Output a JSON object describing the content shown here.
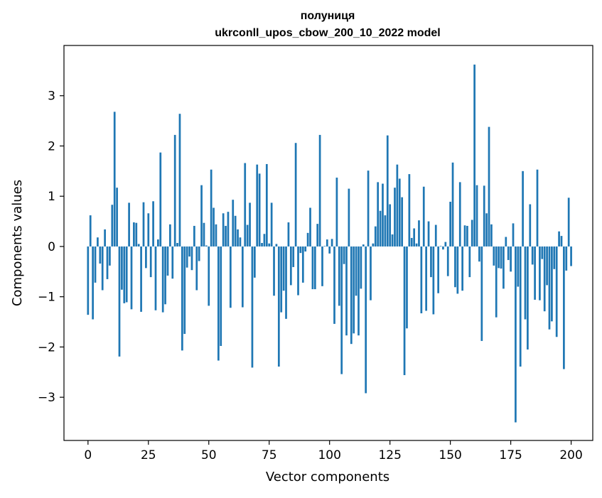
{
  "chart_data": {
    "type": "bar",
    "title": "полуниця",
    "subtitle": "ukrconll_upos_cbow_200_10_2022 model",
    "xlabel": "Vector components",
    "ylabel": "Components values",
    "xlim": [
      -9.95,
      208.95
    ],
    "ylim": [
      -3.86,
      4.0
    ],
    "x_ticks": [
      0,
      25,
      50,
      75,
      100,
      125,
      150,
      175,
      200
    ],
    "y_ticks": [
      -3,
      -2,
      -1,
      0,
      1,
      2,
      3
    ],
    "x_tick_labels": [
      "0",
      "25",
      "50",
      "75",
      "100",
      "125",
      "150",
      "175",
      "200"
    ],
    "y_tick_labels": [
      "−3",
      "−2",
      "−1",
      "0",
      "1",
      "2",
      "3"
    ],
    "bar_color": "#1f77b4",
    "grid": false,
    "values": [
      -1.36,
      0.62,
      -1.45,
      -0.72,
      0.18,
      -0.34,
      -0.87,
      0.34,
      -0.65,
      -0.38,
      0.83,
      2.68,
      1.17,
      -2.19,
      -0.86,
      -1.13,
      -1.11,
      0.87,
      -1.25,
      0.48,
      0.47,
      0.05,
      -1.3,
      0.88,
      -0.43,
      0.66,
      -0.61,
      0.9,
      -1.27,
      0.14,
      1.87,
      -1.31,
      -1.15,
      -0.58,
      0.44,
      -0.64,
      2.22,
      0.07,
      2.64,
      -2.07,
      -1.74,
      -0.42,
      -0.2,
      -0.47,
      0.41,
      -0.87,
      -0.29,
      1.22,
      0.47,
      0.02,
      -1.18,
      1.53,
      0.77,
      0.44,
      -2.27,
      -1.98,
      0.66,
      0.41,
      0.69,
      -1.22,
      0.93,
      0.61,
      0.34,
      0.18,
      -1.21,
      1.66,
      0.43,
      0.87,
      -2.41,
      -0.62,
      1.63,
      1.45,
      0.07,
      0.25,
      1.64,
      0.06,
      0.87,
      -0.98,
      0.05,
      -2.39,
      -1.31,
      -0.88,
      -1.44,
      0.48,
      -0.77,
      -0.41,
      2.06,
      -0.97,
      -0.13,
      -0.72,
      -0.1,
      0.27,
      0.77,
      -0.85,
      -0.85,
      0.45,
      2.22,
      -0.79,
      0.01,
      0.14,
      -0.14,
      0.15,
      -1.54,
      1.37,
      -1.18,
      -2.54,
      -0.35,
      -1.77,
      1.15,
      -1.94,
      -1.73,
      -0.98,
      -1.77,
      -0.84,
      0.04,
      -2.92,
      1.51,
      -1.07,
      0.06,
      0.4,
      1.28,
      0.71,
      1.25,
      0.62,
      2.21,
      0.84,
      0.24,
      1.17,
      1.63,
      1.35,
      0.98,
      -2.56,
      -1.63,
      1.44,
      0.17,
      0.36,
      0.06,
      0.52,
      -1.33,
      1.19,
      -1.28,
      0.5,
      -0.61,
      -1.35,
      0.43,
      -0.93,
      0.01,
      -0.06,
      0.09,
      -0.59,
      0.89,
      1.67,
      -0.81,
      -0.94,
      1.28,
      -0.88,
      0.42,
      0.41,
      -0.61,
      0.53,
      3.62,
      1.22,
      -0.3,
      -1.88,
      1.21,
      0.66,
      2.38,
      0.44,
      -0.38,
      -1.41,
      -0.43,
      -0.44,
      -0.84,
      0.19,
      -0.27,
      -0.5,
      0.46,
      -3.5,
      -0.8,
      -2.39,
      1.5,
      -1.45,
      -2.05,
      0.84,
      -0.36,
      -1.06,
      1.53,
      -1.07,
      -0.25,
      -1.29,
      -0.77,
      -1.65,
      -1.49,
      -0.45,
      -1.8,
      0.3,
      0.21,
      -2.44,
      -0.48,
      0.97,
      -0.39
    ]
  }
}
